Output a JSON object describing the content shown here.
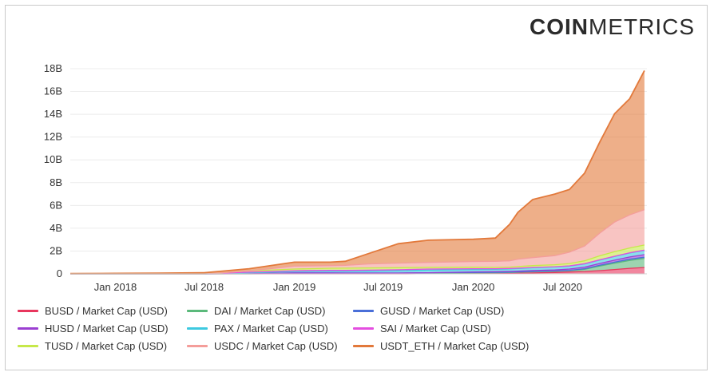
{
  "brand": {
    "bold": "COIN",
    "light": "METRICS"
  },
  "chart_data": {
    "type": "area",
    "stacked": true,
    "x": [
      "2017-10-01",
      "2018-01-01",
      "2018-04-01",
      "2018-07-01",
      "2018-10-01",
      "2019-01-01",
      "2019-03-15",
      "2019-04-15",
      "2019-06-01",
      "2019-08-01",
      "2019-10-01",
      "2020-01-01",
      "2020-02-15",
      "2020-03-15",
      "2020-04-01",
      "2020-05-01",
      "2020-06-15",
      "2020-07-15",
      "2020-08-15",
      "2020-09-15",
      "2020-10-15",
      "2020-11-15",
      "2020-12-15"
    ],
    "xticks": [
      "Jan 2018",
      "Jul 2018",
      "Jan 2019",
      "Jul 2019",
      "Jan 2020",
      "Jul 2020"
    ],
    "xtick_dates": [
      "2018-01-01",
      "2018-07-01",
      "2019-01-01",
      "2019-07-01",
      "2020-01-01",
      "2020-07-01"
    ],
    "xlim": [
      "2017-10-01",
      "2020-12-20"
    ],
    "yticks": [
      "0",
      "2B",
      "4B",
      "6B",
      "8B",
      "10B",
      "12B",
      "14B",
      "16B",
      "18B"
    ],
    "ylim": [
      0,
      18000000000
    ],
    "grid": "horizontal",
    "legend_position": "bottom",
    "series": [
      {
        "name": "BUSD / Market Cap (USD)",
        "color": "#e8365d",
        "values": [
          0,
          0,
          0,
          0,
          0,
          0,
          0,
          0,
          0,
          0,
          20000000,
          30000000,
          30000000,
          40000000,
          50000000,
          80000000,
          120000000,
          160000000,
          200000000,
          280000000,
          380000000,
          480000000,
          550000000
        ]
      },
      {
        "name": "DAI / Market Cap (USD)",
        "color": "#5bb97b",
        "values": [
          0,
          0,
          0,
          0,
          0,
          30000000,
          30000000,
          40000000,
          40000000,
          40000000,
          50000000,
          60000000,
          70000000,
          80000000,
          90000000,
          100000000,
          100000000,
          120000000,
          200000000,
          400000000,
          550000000,
          700000000,
          800000000
        ]
      },
      {
        "name": "GUSD / Market Cap (USD)",
        "color": "#4a6fd8",
        "values": [
          0,
          0,
          0,
          0,
          20000000,
          50000000,
          50000000,
          30000000,
          30000000,
          30000000,
          30000000,
          30000000,
          30000000,
          30000000,
          30000000,
          30000000,
          30000000,
          30000000,
          50000000,
          70000000,
          90000000,
          100000000,
          110000000
        ]
      },
      {
        "name": "HUSD / Market Cap (USD)",
        "color": "#9b3fd1",
        "values": [
          0,
          0,
          0,
          0,
          0,
          0,
          0,
          0,
          0,
          0,
          0,
          50000000,
          60000000,
          60000000,
          70000000,
          80000000,
          90000000,
          110000000,
          140000000,
          160000000,
          180000000,
          200000000,
          220000000
        ]
      },
      {
        "name": "PAX / Market Cap (USD)",
        "color": "#3ec9e0",
        "values": [
          0,
          0,
          0,
          0,
          80000000,
          120000000,
          150000000,
          150000000,
          170000000,
          200000000,
          220000000,
          200000000,
          200000000,
          220000000,
          230000000,
          250000000,
          260000000,
          260000000,
          280000000,
          300000000,
          320000000,
          350000000,
          380000000
        ]
      },
      {
        "name": "SAI / Market Cap (USD)",
        "color": "#e44ee0",
        "values": [
          0,
          0,
          0,
          0,
          50000000,
          70000000,
          80000000,
          80000000,
          80000000,
          90000000,
          100000000,
          80000000,
          60000000,
          40000000,
          30000000,
          20000000,
          20000000,
          20000000,
          20000000,
          20000000,
          20000000,
          20000000,
          20000000
        ]
      },
      {
        "name": "TUSD / Market Cap (USD)",
        "color": "#c6e84a",
        "values": [
          0,
          0,
          0,
          0,
          100000000,
          150000000,
          180000000,
          200000000,
          200000000,
          180000000,
          150000000,
          130000000,
          120000000,
          120000000,
          140000000,
          160000000,
          180000000,
          200000000,
          250000000,
          350000000,
          400000000,
          420000000,
          450000000
        ]
      },
      {
        "name": "USDC / Market Cap (USD)",
        "color": "#f49d9a",
        "values": [
          0,
          0,
          0,
          0,
          0,
          250000000,
          230000000,
          250000000,
          350000000,
          400000000,
          430000000,
          500000000,
          520000000,
          550000000,
          650000000,
          700000000,
          800000000,
          1000000000,
          1300000000,
          2000000000,
          2600000000,
          2900000000,
          3100000000
        ]
      },
      {
        "name": "USDT_ETH / Market Cap (USD)",
        "color": "#e2793b",
        "values": [
          20000000,
          40000000,
          60000000,
          100000000,
          200000000,
          350000000,
          300000000,
          350000000,
          900000000,
          1700000000,
          1950000000,
          1950000000,
          2050000000,
          3200000000,
          4100000000,
          5100000000,
          5400000000,
          5500000000,
          6400000000,
          8000000000,
          9500000000,
          10200000000,
          12200000000
        ]
      }
    ]
  }
}
